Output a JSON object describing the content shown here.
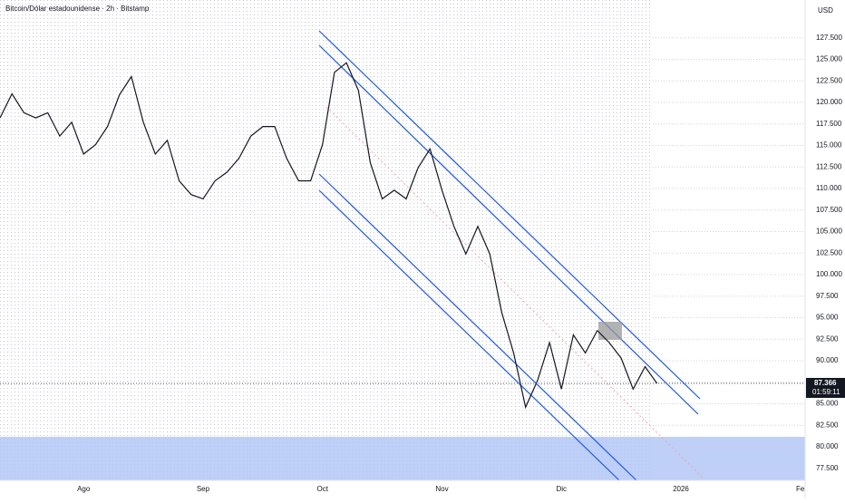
{
  "chart_data": {
    "type": "line",
    "title": "Bitcoin/Dólar estadounidense · 2h · Bitstamp",
    "currency": "USD",
    "current_price": {
      "value": 87366,
      "label": "87.366",
      "countdown": "01:59:11"
    },
    "categories": [
      null,
      null,
      null,
      null,
      null,
      null,
      null,
      "Ago",
      null,
      null,
      null,
      null,
      null,
      null,
      null,
      null,
      null,
      "Sep",
      null,
      null,
      null,
      null,
      null,
      null,
      null,
      null,
      null,
      "Oct",
      null,
      null,
      null,
      null,
      null,
      null,
      null,
      null,
      null,
      "Nov",
      null,
      null,
      null,
      null,
      null,
      null,
      null,
      null,
      null,
      "Dic",
      null,
      null,
      null,
      null,
      null,
      null,
      null,
      null,
      null,
      "2026",
      null,
      null,
      null,
      null,
      null,
      null,
      null,
      null,
      null,
      "Fe"
    ],
    "series": [
      {
        "name": "BTCUSD",
        "color": "#131722",
        "values": [
          118200,
          121000,
          118800,
          118200,
          118800,
          116100,
          117700,
          114000,
          115100,
          117200,
          120900,
          123000,
          117700,
          114000,
          115600,
          110900,
          109300,
          108800,
          110900,
          111900,
          113500,
          116100,
          117200,
          117200,
          113500,
          110900,
          110900,
          115100,
          123500,
          124600,
          121400,
          113000,
          108800,
          109800,
          108800,
          112400,
          114600,
          109800,
          105600,
          102400,
          105600,
          102400,
          95600,
          90900,
          84600,
          87700,
          92100,
          86700,
          93000,
          90900,
          93500,
          92100,
          90300,
          86700,
          89300,
          87366,
          null,
          null,
          null,
          null,
          null,
          null,
          null,
          null,
          null,
          null,
          null,
          null
        ]
      }
    ],
    "ylim": [
      76100,
      131900
    ],
    "yticks": [
      {
        "value": 77500,
        "label": "77.500"
      },
      {
        "value": 80000,
        "label": "80.000"
      },
      {
        "value": 82500,
        "label": "82.500"
      },
      {
        "value": 85000,
        "label": "85.000"
      },
      {
        "value": 87500,
        "label": "87.500"
      },
      {
        "value": 90000,
        "label": "90.000"
      },
      {
        "value": 92500,
        "label": "92.500"
      },
      {
        "value": 95000,
        "label": "95.000"
      },
      {
        "value": 97500,
        "label": "97.500"
      },
      {
        "value": 100000,
        "label": "100.000"
      },
      {
        "value": 102500,
        "label": "102.500"
      },
      {
        "value": 105000,
        "label": "105.000"
      },
      {
        "value": 107500,
        "label": "107.500"
      },
      {
        "value": 110000,
        "label": "110.000"
      },
      {
        "value": 112500,
        "label": "112.500"
      },
      {
        "value": 115000,
        "label": "115.000"
      },
      {
        "value": 117500,
        "label": "117.500"
      },
      {
        "value": 120000,
        "label": "120.000"
      },
      {
        "value": 122500,
        "label": "122.500"
      },
      {
        "value": 125000,
        "label": "125.000"
      },
      {
        "value": 127500,
        "label": "127.500"
      }
    ],
    "grid": true
  }
}
